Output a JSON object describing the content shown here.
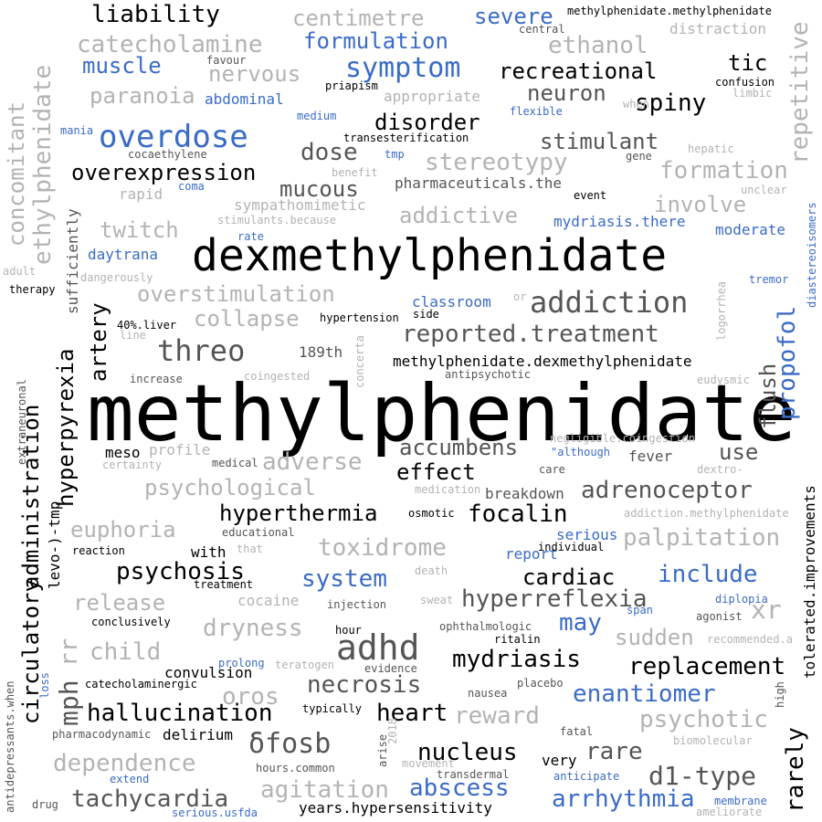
{
  "palette": {
    "black": "#000000",
    "dark": "#555555",
    "light": "#b3b3b3",
    "blue": "#3a6bc7"
  },
  "words": [
    {
      "text": "methylphenidate",
      "size": 86,
      "color": "black"
    },
    {
      "text": "dexmethylphenidate",
      "size": 48,
      "color": "black"
    },
    {
      "text": "overdose",
      "size": 34,
      "color": "blue"
    },
    {
      "text": "addiction",
      "size": 32,
      "color": "dark"
    },
    {
      "text": "adhd",
      "size": 38,
      "color": "dark"
    },
    {
      "text": "threo",
      "size": 32,
      "color": "dark"
    },
    {
      "text": "δfosb",
      "size": 30,
      "color": "dark"
    },
    {
      "text": "symptom",
      "size": 30,
      "color": "blue"
    },
    {
      "text": "reported.treatment",
      "size": 26,
      "color": "dark"
    },
    {
      "text": "overstimulation",
      "size": 24,
      "color": "light"
    },
    {
      "text": "collapse",
      "size": 24,
      "color": "light"
    },
    {
      "text": "hyperreflexia",
      "size": 26,
      "color": "dark"
    },
    {
      "text": "hallucination",
      "size": 26,
      "color": "black"
    },
    {
      "text": "psychosis",
      "size": 26,
      "color": "black"
    },
    {
      "text": "toxidrome",
      "size": 26,
      "color": "light"
    },
    {
      "text": "system",
      "size": 26,
      "color": "blue"
    },
    {
      "text": "include",
      "size": 26,
      "color": "blue"
    },
    {
      "text": "palpitation",
      "size": 26,
      "color": "light"
    },
    {
      "text": "replacement",
      "size": 26,
      "color": "black"
    },
    {
      "text": "enantiomer",
      "size": 26,
      "color": "blue"
    },
    {
      "text": "abscess",
      "size": 26,
      "color": "blue"
    },
    {
      "text": "arrhythmia",
      "size": 26,
      "color": "blue"
    },
    {
      "text": "tachycardia",
      "size": 26,
      "color": "dark"
    },
    {
      "text": "agitation",
      "size": 26,
      "color": "light"
    },
    {
      "text": "dependence",
      "size": 26,
      "color": "light"
    },
    {
      "text": "necrosis",
      "size": 26,
      "color": "dark"
    },
    {
      "text": "nucleus",
      "size": 26,
      "color": "black"
    },
    {
      "text": "heart",
      "size": 26,
      "color": "black"
    },
    {
      "text": "mydriasis",
      "size": 26,
      "color": "black"
    },
    {
      "text": "d1-type",
      "size": 28,
      "color": "dark"
    },
    {
      "text": "rare",
      "size": 26,
      "color": "dark"
    },
    {
      "text": "psychotic",
      "size": 26,
      "color": "light"
    },
    {
      "text": "reward",
      "size": 26,
      "color": "light"
    },
    {
      "text": "oros",
      "size": 26,
      "color": "light"
    },
    {
      "text": "child",
      "size": 26,
      "color": "light"
    },
    {
      "text": "dryness",
      "size": 26,
      "color": "light"
    },
    {
      "text": "release",
      "size": 24,
      "color": "light"
    },
    {
      "text": "euphoria",
      "size": 24,
      "color": "light"
    },
    {
      "text": "psychological",
      "size": 24,
      "color": "light"
    },
    {
      "text": "adverse",
      "size": 26,
      "color": "light"
    },
    {
      "text": "accumbens",
      "size": 24,
      "color": "dark"
    },
    {
      "text": "effect",
      "size": 24,
      "color": "black"
    },
    {
      "text": "adrenoceptor",
      "size": 26,
      "color": "dark"
    },
    {
      "text": "use",
      "size": 24,
      "color": "dark"
    },
    {
      "text": "focalin",
      "size": 26,
      "color": "black"
    },
    {
      "text": "hyperthermia",
      "size": 24,
      "color": "black"
    },
    {
      "text": "cardiac",
      "size": 24,
      "color": "black"
    },
    {
      "text": "may",
      "size": 26,
      "color": "blue"
    },
    {
      "text": "sudden",
      "size": 24,
      "color": "light"
    },
    {
      "text": "xr",
      "size": 28,
      "color": "light"
    },
    {
      "text": "liability",
      "size": 26,
      "color": "black"
    },
    {
      "text": "catecholamine",
      "size": 26,
      "color": "light"
    },
    {
      "text": "muscle",
      "size": 24,
      "color": "blue"
    },
    {
      "text": "nervous",
      "size": 24,
      "color": "light"
    },
    {
      "text": "paranoia",
      "size": 24,
      "color": "light"
    },
    {
      "text": "centimetre",
      "size": 24,
      "color": "light"
    },
    {
      "text": "formulation",
      "size": 24,
      "color": "blue"
    },
    {
      "text": "severe",
      "size": 24,
      "color": "blue"
    },
    {
      "text": "ethanol",
      "size": 26,
      "color": "light"
    },
    {
      "text": "recreational",
      "size": 24,
      "color": "black"
    },
    {
      "text": "tic",
      "size": 24,
      "color": "black"
    },
    {
      "text": "neuron",
      "size": 24,
      "color": "dark"
    },
    {
      "text": "spiny",
      "size": 26,
      "color": "black"
    },
    {
      "text": "disorder",
      "size": 24,
      "color": "black"
    },
    {
      "text": "stimulant",
      "size": 24,
      "color": "dark"
    },
    {
      "text": "dose",
      "size": 26,
      "color": "dark"
    },
    {
      "text": "stereotypy",
      "size": 26,
      "color": "light"
    },
    {
      "text": "formation",
      "size": 26,
      "color": "light"
    },
    {
      "text": "overexpression",
      "size": 24,
      "color": "black"
    },
    {
      "text": "mucous",
      "size": 24,
      "color": "dark"
    },
    {
      "text": "involve",
      "size": 24,
      "color": "light"
    },
    {
      "text": "addictive",
      "size": 24,
      "color": "light"
    },
    {
      "text": "twitch",
      "size": 24,
      "color": "light"
    },
    {
      "text": "daytrana",
      "size": 16,
      "color": "blue"
    },
    {
      "text": "moderate",
      "size": 16,
      "color": "blue"
    },
    {
      "text": "mydriasis.there",
      "size": 16,
      "color": "blue"
    },
    {
      "text": "pharmaceuticals.the",
      "size": 16,
      "color": "dark"
    },
    {
      "text": "methylphenidate.dexmethylphenidate",
      "size": 16,
      "color": "black"
    },
    {
      "text": "classroom",
      "size": 16,
      "color": "blue"
    },
    {
      "text": "189th",
      "size": 16,
      "color": "dark"
    },
    {
      "text": "profile",
      "size": 16,
      "color": "light"
    },
    {
      "text": "meso",
      "size": 16,
      "color": "black"
    },
    {
      "text": "breakdown",
      "size": 16,
      "color": "dark"
    },
    {
      "text": "fever",
      "size": 16,
      "color": "dark"
    },
    {
      "text": "with",
      "size": 16,
      "color": "black"
    },
    {
      "text": "convulsion",
      "size": 16,
      "color": "black"
    },
    {
      "text": "delirium",
      "size": 16,
      "color": "black"
    },
    {
      "text": "very",
      "size": 16,
      "color": "black"
    },
    {
      "text": "years.hypersensitivity",
      "size": 16,
      "color": "black"
    },
    {
      "text": "report",
      "size": 16,
      "color": "blue"
    },
    {
      "text": "serious",
      "size": 16,
      "color": "blue"
    },
    {
      "text": "abdominal",
      "size": 16,
      "color": "blue"
    },
    {
      "text": "methylphenidate.methylphenidate",
      "size": 12,
      "color": "black"
    },
    {
      "text": "central",
      "size": 12,
      "color": "dark"
    },
    {
      "text": "distraction",
      "size": 16,
      "color": "light"
    },
    {
      "text": "favour",
      "size": 12,
      "color": "dark"
    },
    {
      "text": "priapism",
      "size": 12,
      "color": "black"
    },
    {
      "text": "appropriate",
      "size": 16,
      "color": "light"
    },
    {
      "text": "confusion",
      "size": 12,
      "color": "black"
    },
    {
      "text": "limbic",
      "size": 12,
      "color": "light"
    },
    {
      "text": "medium",
      "size": 12,
      "color": "blue"
    },
    {
      "text": "flexible",
      "size": 12,
      "color": "blue"
    },
    {
      "text": "when",
      "size": 12,
      "color": "light"
    },
    {
      "text": "mania",
      "size": 12,
      "color": "blue"
    },
    {
      "text": "transesterification",
      "size": 12,
      "color": "black"
    },
    {
      "text": "hepatic",
      "size": 12,
      "color": "light"
    },
    {
      "text": "cocaethylene",
      "size": 12,
      "color": "dark"
    },
    {
      "text": "tmp",
      "size": 12,
      "color": "blue"
    },
    {
      "text": "gene",
      "size": 12,
      "color": "dark"
    },
    {
      "text": "benefit",
      "size": 12,
      "color": "light"
    },
    {
      "text": "rapid",
      "size": 16,
      "color": "light"
    },
    {
      "text": "coma",
      "size": 12,
      "color": "blue"
    },
    {
      "text": "event",
      "size": 12,
      "color": "black"
    },
    {
      "text": "unclear",
      "size": 12,
      "color": "light"
    },
    {
      "text": "sympathomimetic",
      "size": 16,
      "color": "light"
    },
    {
      "text": "stimulants.because",
      "size": 12,
      "color": "light"
    },
    {
      "text": "rate",
      "size": 12,
      "color": "blue"
    },
    {
      "text": "adult",
      "size": 12,
      "color": "light"
    },
    {
      "text": "dangerously",
      "size": 12,
      "color": "light"
    },
    {
      "text": "therapy",
      "size": 12,
      "color": "black"
    },
    {
      "text": "tremor",
      "size": 12,
      "color": "blue"
    },
    {
      "text": "or",
      "size": 12,
      "color": "light"
    },
    {
      "text": "hypertension",
      "size": 12,
      "color": "black"
    },
    {
      "text": "side",
      "size": 12,
      "color": "black"
    },
    {
      "text": "40%.liver",
      "size": 12,
      "color": "black"
    },
    {
      "text": "line",
      "size": 12,
      "color": "light"
    },
    {
      "text": "increase",
      "size": 12,
      "color": "dark"
    },
    {
      "text": "coingested",
      "size": 12,
      "color": "light"
    },
    {
      "text": "antipsychotic",
      "size": 12,
      "color": "dark"
    },
    {
      "text": "eudysmic",
      "size": 12,
      "color": "light"
    },
    {
      "text": "negligible.coingestion",
      "size": 12,
      "color": "light"
    },
    {
      "text": "\"although",
      "size": 12,
      "color": "blue"
    },
    {
      "text": "certainty",
      "size": 12,
      "color": "light"
    },
    {
      "text": "medical",
      "size": 12,
      "color": "dark"
    },
    {
      "text": "care",
      "size": 12,
      "color": "dark"
    },
    {
      "text": "dextro-",
      "size": 12,
      "color": "light"
    },
    {
      "text": "medication",
      "size": 12,
      "color": "light"
    },
    {
      "text": "osmotic",
      "size": 12,
      "color": "black"
    },
    {
      "text": "addiction.methylphenidate",
      "size": 12,
      "color": "light"
    },
    {
      "text": "educational",
      "size": 12,
      "color": "dark"
    },
    {
      "text": "reaction",
      "size": 12,
      "color": "black"
    },
    {
      "text": "that",
      "size": 12,
      "color": "light"
    },
    {
      "text": "individual",
      "size": 12,
      "color": "black"
    },
    {
      "text": "treatment",
      "size": 12,
      "color": "black"
    },
    {
      "text": "death",
      "size": 12,
      "color": "light"
    },
    {
      "text": "cocaine",
      "size": 16,
      "color": "light"
    },
    {
      "text": "sweat",
      "size": 12,
      "color": "light"
    },
    {
      "text": "span",
      "size": 12,
      "color": "blue"
    },
    {
      "text": "diplopia",
      "size": 12,
      "color": "blue"
    },
    {
      "text": "injection",
      "size": 12,
      "color": "dark"
    },
    {
      "text": "agonist",
      "size": 12,
      "color": "dark"
    },
    {
      "text": "conclusively",
      "size": 12,
      "color": "black"
    },
    {
      "text": "ophthalmologic",
      "size": 12,
      "color": "dark"
    },
    {
      "text": "hour",
      "size": 12,
      "color": "black"
    },
    {
      "text": "recommended.a",
      "size": 12,
      "color": "light"
    },
    {
      "text": "ritalin",
      "size": 12,
      "color": "black"
    },
    {
      "text": "prolong",
      "size": 12,
      "color": "blue"
    },
    {
      "text": "teratogen",
      "size": 12,
      "color": "light"
    },
    {
      "text": "evidence",
      "size": 12,
      "color": "dark"
    },
    {
      "text": "catecholaminergic",
      "size": 12,
      "color": "black"
    },
    {
      "text": "placebo",
      "size": 12,
      "color": "dark"
    },
    {
      "text": "nausea",
      "size": 12,
      "color": "dark"
    },
    {
      "text": "typically",
      "size": 12,
      "color": "black"
    },
    {
      "text": "pharmacodynamic",
      "size": 12,
      "color": "dark"
    },
    {
      "text": "fatal",
      "size": 12,
      "color": "dark"
    },
    {
      "text": "biomolecular",
      "size": 12,
      "color": "light"
    },
    {
      "text": "hours.common",
      "size": 12,
      "color": "dark"
    },
    {
      "text": "movement",
      "size": 12,
      "color": "light"
    },
    {
      "text": "transdermal",
      "size": 12,
      "color": "dark"
    },
    {
      "text": "extend",
      "size": 12,
      "color": "blue"
    },
    {
      "text": "anticipate",
      "size": 12,
      "color": "blue"
    },
    {
      "text": "drug",
      "size": 12,
      "color": "dark"
    },
    {
      "text": "serious.usfda",
      "size": 12,
      "color": "blue"
    },
    {
      "text": "membrane",
      "size": 12,
      "color": "blue"
    },
    {
      "text": "ameliorate",
      "size": 12,
      "color": "light"
    },
    {
      "text": "ethylphenidate",
      "size": 26,
      "color": "light",
      "vertical": true
    },
    {
      "text": "concomitant",
      "size": 24,
      "color": "light",
      "vertical": true
    },
    {
      "text": "sufficiently",
      "size": 16,
      "color": "dark",
      "vertical": true
    },
    {
      "text": "artery",
      "size": 24,
      "color": "black",
      "vertical": true
    },
    {
      "text": "hyperpyrexia",
      "size": 24,
      "color": "black",
      "vertical": true
    },
    {
      "text": "administration",
      "size": 24,
      "color": "black",
      "vertical": true
    },
    {
      "text": "circulatory",
      "size": 24,
      "color": "black",
      "vertical": true
    },
    {
      "text": "mph",
      "size": 28,
      "color": "dark",
      "vertical": true
    },
    {
      "text": "rr",
      "size": 26,
      "color": "light",
      "vertical": true
    },
    {
      "text": "levo-)-tmp",
      "size": 16,
      "color": "black",
      "vertical": true
    },
    {
      "text": "extraneuronal",
      "size": 12,
      "color": "dark",
      "vertical": true
    },
    {
      "text": "antidepressants.when",
      "size": 12,
      "color": "dark",
      "vertical": true
    },
    {
      "text": "loss",
      "size": 12,
      "color": "blue",
      "vertical": true
    },
    {
      "text": "repetitive",
      "size": 26,
      "color": "light",
      "vertical": true
    },
    {
      "text": "propofol",
      "size": 26,
      "color": "blue",
      "vertical": true
    },
    {
      "text": "flush",
      "size": 24,
      "color": "dark",
      "vertical": true
    },
    {
      "text": "diastereoisomers",
      "size": 12,
      "color": "blue",
      "vertical": true
    },
    {
      "text": "logorrhea",
      "size": 12,
      "color": "light",
      "vertical": true
    },
    {
      "text": "tolerated.improvements",
      "size": 16,
      "color": "black",
      "vertical": true
    },
    {
      "text": "high",
      "size": 12,
      "color": "dark",
      "vertical": true
    },
    {
      "text": "rarely",
      "size": 26,
      "color": "black",
      "vertical": true
    },
    {
      "text": "concerta",
      "size": 12,
      "color": "light",
      "vertical": true
    },
    {
      "text": "arise",
      "size": 12,
      "color": "dark",
      "vertical": true
    },
    {
      "text": "2018",
      "size": 12,
      "color": "light",
      "vertical": true
    }
  ]
}
